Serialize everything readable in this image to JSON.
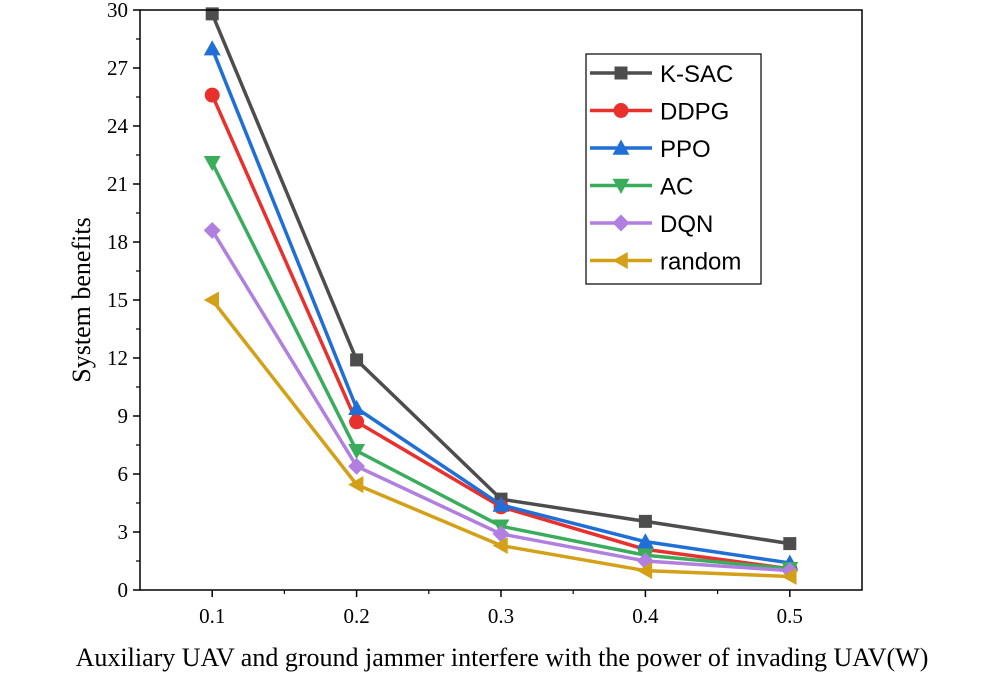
{
  "chart_data": {
    "type": "line",
    "title": "",
    "xlabel": "Auxiliary UAV and ground jammer interfere with the power of invading UAV(W)",
    "ylabel": "System benefits",
    "x": [
      0.1,
      0.2,
      0.3,
      0.4,
      0.5
    ],
    "x_tick_labels": [
      "0.1",
      "0.2",
      "0.3",
      "0.4",
      "0.5"
    ],
    "xlim": [
      0.05,
      0.55
    ],
    "ylim": [
      0,
      30
    ],
    "y_ticks": [
      0,
      3,
      6,
      9,
      12,
      15,
      18,
      21,
      24,
      27,
      30
    ],
    "y_tick_labels": [
      "0",
      "3",
      "6",
      "9",
      "12",
      "15",
      "18",
      "21",
      "24",
      "27",
      "30"
    ],
    "legend_position": "top-right",
    "grid": false,
    "series": [
      {
        "name": "K-SAC",
        "color": "#4d4d4d",
        "marker": "square",
        "values": [
          29.8,
          11.9,
          4.7,
          3.55,
          2.4
        ]
      },
      {
        "name": "DDPG",
        "color": "#e8312d",
        "marker": "circle",
        "values": [
          25.6,
          8.7,
          4.3,
          2.1,
          1.1
        ]
      },
      {
        "name": "PPO",
        "color": "#1f6fd6",
        "marker": "triangle-up",
        "values": [
          28.0,
          9.4,
          4.4,
          2.5,
          1.4
        ]
      },
      {
        "name": "AC",
        "color": "#3aad5c",
        "marker": "triangle-down",
        "values": [
          22.1,
          7.2,
          3.3,
          1.8,
          1.1
        ]
      },
      {
        "name": "DQN",
        "color": "#b07fe0",
        "marker": "diamond",
        "values": [
          18.6,
          6.4,
          2.9,
          1.5,
          1.0
        ]
      },
      {
        "name": "random",
        "color": "#d4a017",
        "marker": "triangle-left",
        "values": [
          15.0,
          5.45,
          2.3,
          1.0,
          0.7
        ]
      }
    ]
  }
}
